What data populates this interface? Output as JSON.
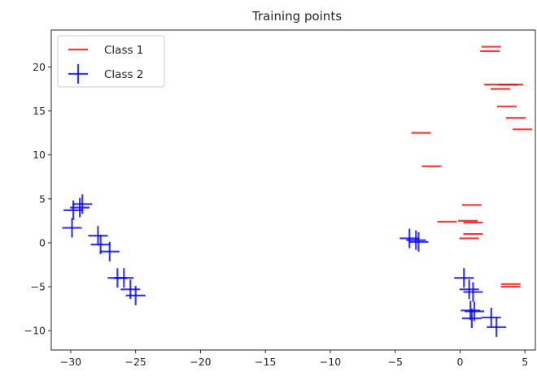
{
  "chart_data": {
    "type": "scatter",
    "title": "Training points",
    "xlabel": "",
    "ylabel": "",
    "xlim": [
      -31.5,
      5.8
    ],
    "ylim": [
      -12.2,
      24.2
    ],
    "xticks": [
      -30,
      -25,
      -20,
      -15,
      -10,
      -5,
      0,
      5
    ],
    "yticks": [
      -10,
      -5,
      0,
      5,
      10,
      15,
      20
    ],
    "xtick_labels": [
      "−30",
      "−25",
      "−20",
      "−15",
      "−10",
      "−5",
      "0",
      "5"
    ],
    "ytick_labels": [
      "−10",
      "−5",
      "0",
      "5",
      "10",
      "15",
      "20"
    ],
    "grid": false,
    "legend_position": "top-left",
    "series": [
      {
        "name": "Class 1",
        "marker": "_",
        "color": "#ff0000",
        "points": [
          [
            2.4,
            22.3
          ],
          [
            2.3,
            21.8
          ],
          [
            2.6,
            18.0
          ],
          [
            3.1,
            17.5
          ],
          [
            3.7,
            18.0
          ],
          [
            4.1,
            18.0
          ],
          [
            3.6,
            15.5
          ],
          [
            4.3,
            14.2
          ],
          [
            4.8,
            12.9
          ],
          [
            -3.0,
            12.5
          ],
          [
            -2.2,
            8.7
          ],
          [
            0.9,
            4.3
          ],
          [
            -1.0,
            2.4
          ],
          [
            0.6,
            2.5
          ],
          [
            1.0,
            2.3
          ],
          [
            1.0,
            1.0
          ],
          [
            0.7,
            0.5
          ],
          [
            3.9,
            -4.7
          ],
          [
            3.9,
            -5.0
          ]
        ]
      },
      {
        "name": "Class 2",
        "marker": "+",
        "color": "#0000ff",
        "points": [
          [
            -29.1,
            4.4
          ],
          [
            -29.3,
            4.0
          ],
          [
            -29.8,
            3.7
          ],
          [
            -29.9,
            1.7
          ],
          [
            -27.9,
            0.8
          ],
          [
            -27.7,
            -0.2
          ],
          [
            -27.0,
            -1.0
          ],
          [
            -26.4,
            -4.0
          ],
          [
            -25.9,
            -4.0
          ],
          [
            -25.4,
            -5.3
          ],
          [
            -25.0,
            -6.0
          ],
          [
            -3.9,
            0.5
          ],
          [
            -3.4,
            0.3
          ],
          [
            -3.2,
            0.1
          ],
          [
            0.3,
            -4.0
          ],
          [
            0.7,
            -5.3
          ],
          [
            1.0,
            -5.6
          ],
          [
            0.8,
            -7.7
          ],
          [
            1.1,
            -7.8
          ],
          [
            0.9,
            -8.6
          ],
          [
            2.4,
            -8.5
          ],
          [
            2.8,
            -9.6
          ]
        ]
      }
    ]
  }
}
